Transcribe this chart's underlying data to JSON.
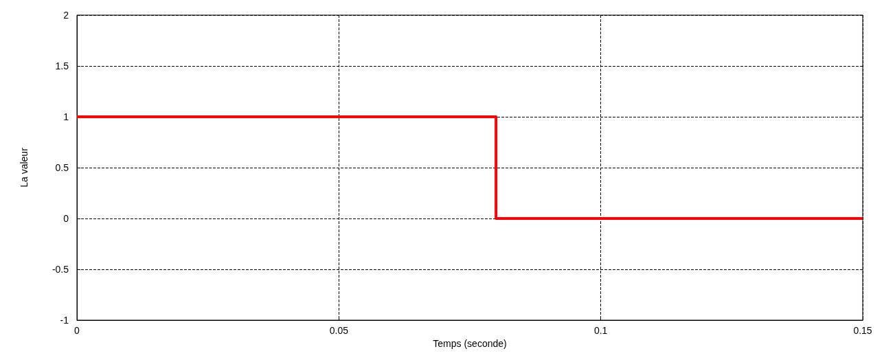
{
  "chart_data": {
    "type": "step",
    "xlabel": "Temps (seconde)",
    "ylabel": "La valeur",
    "x": [
      0,
      0.08,
      0.15
    ],
    "series": [
      {
        "color": "#ff0000",
        "values": [
          1,
          0,
          0
        ]
      }
    ],
    "xlim": [
      0,
      0.15
    ],
    "xticks": [
      0,
      0.05,
      0.1,
      0.15
    ],
    "ylim": [
      -1,
      2
    ],
    "yticks": [
      -1,
      -0.5,
      0,
      0.5,
      1,
      1.5,
      2
    ],
    "grid": true,
    "marker": "none",
    "line_style": "solid"
  }
}
